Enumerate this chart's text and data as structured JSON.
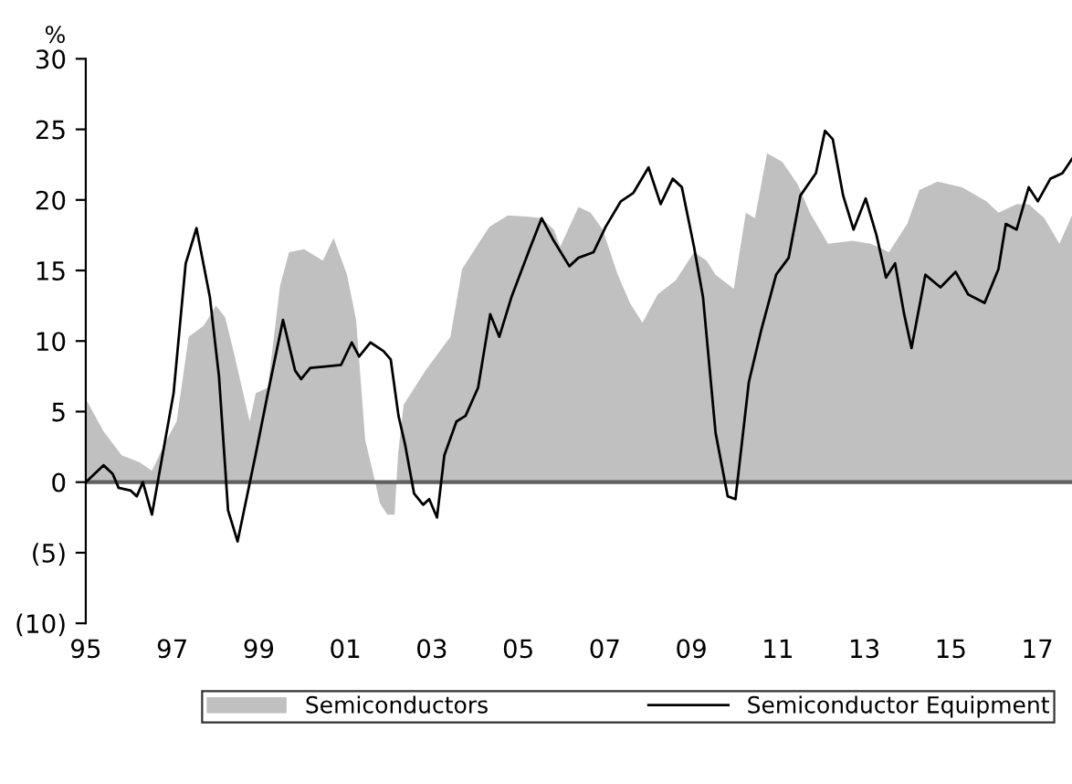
{
  "chart_data": {
    "type": "line",
    "ylabel": "%",
    "x": [
      1995.0,
      1995.41,
      1995.83,
      1996.25,
      1996.53,
      1996.82,
      1997.1,
      1997.38,
      1997.73,
      1998.01,
      1998.22,
      1998.43,
      1998.64,
      1998.79,
      1998.93,
      1999.21,
      1999.49,
      1999.7,
      2000.05,
      2000.48,
      2000.73,
      2001.04,
      2001.25,
      2001.46,
      2001.67,
      2001.8,
      2001.97,
      2002.14,
      2002.22,
      2002.35,
      2002.85,
      2003.43,
      2003.7,
      2004.12,
      2004.33,
      2004.76,
      2005.26,
      2005.54,
      2005.82,
      2005.97,
      2006.39,
      2006.67,
      2006.95,
      2007.3,
      2007.58,
      2007.87,
      2008.22,
      2008.64,
      2009.06,
      2009.35,
      2009.56,
      2009.98,
      2010.26,
      2010.47,
      2010.75,
      2011.1,
      2011.46,
      2011.74,
      2012.16,
      2012.72,
      2013.15,
      2013.57,
      2013.99,
      2014.27,
      2014.69,
      2015.26,
      2015.82,
      2016.1,
      2016.52,
      2016.8,
      2017.16,
      2017.51,
      2017.8
    ],
    "series": [
      {
        "name": "Semiconductors",
        "type": "area",
        "color": "#c0c0c0",
        "values": [
          5.9,
          3.6,
          1.9,
          1.4,
          0.8,
          2.7,
          4.3,
          10.3,
          11.1,
          12.5,
          11.7,
          9.1,
          6.3,
          4.3,
          6.3,
          6.7,
          13.9,
          16.3,
          16.5,
          15.7,
          17.3,
          14.7,
          11.5,
          3.0,
          0.3,
          -1.5,
          -2.3,
          -2.3,
          2.0,
          5.5,
          7.9,
          10.3,
          15.1,
          17.1,
          18.1,
          18.9,
          18.8,
          18.7,
          17.9,
          16.7,
          19.5,
          19.1,
          17.9,
          14.7,
          12.7,
          11.3,
          13.3,
          14.3,
          16.3,
          15.7,
          14.7,
          13.7,
          19.1,
          18.7,
          23.3,
          22.7,
          21.1,
          19.1,
          16.9,
          17.1,
          16.9,
          16.3,
          18.3,
          20.7,
          21.3,
          20.9,
          19.9,
          19.1,
          19.7,
          19.7,
          18.7,
          16.9,
          18.9
        ]
      },
      {
        "name": "Semiconductor Equipment",
        "color": "#000000",
        "x": [
          1995.0,
          1995.41,
          1995.62,
          1995.76,
          1996.04,
          1996.18,
          1996.32,
          1996.53,
          1996.82,
          1997.03,
          1997.31,
          1997.56,
          1997.87,
          1998.08,
          1998.29,
          1998.51,
          1998.93,
          1999.21,
          1999.56,
          1999.84,
          1999.98,
          2000.19,
          2000.54,
          2000.9,
          2001.15,
          2001.32,
          2001.58,
          2001.88,
          2002.05,
          2002.23,
          2002.38,
          2002.59,
          2002.8,
          2002.94,
          2003.12,
          2003.29,
          2003.57,
          2003.78,
          2004.07,
          2004.35,
          2004.56,
          2004.84,
          2005.26,
          2005.54,
          2005.82,
          2006.18,
          2006.39,
          2006.74,
          2007.02,
          2007.37,
          2007.66,
          2008.01,
          2008.29,
          2008.57,
          2008.78,
          2009.06,
          2009.27,
          2009.56,
          2009.84,
          2010.02,
          2010.33,
          2010.61,
          2010.96,
          2011.25,
          2011.52,
          2011.88,
          2012.09,
          2012.27,
          2012.51,
          2012.75,
          2013.03,
          2013.28,
          2013.5,
          2013.71,
          2013.92,
          2014.09,
          2014.41,
          2014.76,
          2015.11,
          2015.4,
          2015.78,
          2016.1,
          2016.27,
          2016.52,
          2016.8,
          2017.01,
          2017.3,
          2017.58,
          2017.8
        ],
        "values": [
          0.0,
          1.2,
          0.6,
          -0.4,
          -0.6,
          -1.0,
          0.0,
          -2.3,
          2.7,
          6.3,
          15.5,
          18.0,
          13.1,
          7.5,
          -2.0,
          -4.2,
          2.0,
          6.3,
          11.5,
          7.9,
          7.3,
          8.1,
          8.2,
          8.3,
          9.9,
          8.9,
          9.9,
          9.3,
          8.7,
          4.7,
          2.7,
          -0.8,
          -1.6,
          -1.2,
          -2.5,
          1.9,
          4.3,
          4.7,
          6.7,
          11.9,
          10.3,
          13.1,
          16.5,
          18.7,
          17.1,
          15.3,
          15.9,
          16.3,
          18.1,
          19.9,
          20.5,
          22.3,
          19.7,
          21.5,
          20.9,
          16.7,
          13.1,
          3.5,
          -1.0,
          -1.2,
          7.1,
          10.7,
          14.7,
          15.9,
          20.3,
          21.9,
          24.9,
          24.3,
          20.3,
          17.9,
          20.1,
          17.5,
          14.5,
          15.5,
          11.9,
          9.5,
          14.7,
          13.8,
          14.9,
          13.3,
          12.7,
          15.1,
          18.3,
          17.9,
          20.9,
          19.9,
          21.5,
          21.9,
          22.9
        ]
      }
    ],
    "xlim": [
      1995,
      2017.8
    ],
    "xticks": [
      {
        "value": 1995,
        "label": "95"
      },
      {
        "value": 1997,
        "label": "97"
      },
      {
        "value": 1999,
        "label": "99"
      },
      {
        "value": 2001,
        "label": "01"
      },
      {
        "value": 2003,
        "label": "03"
      },
      {
        "value": 2005,
        "label": "05"
      },
      {
        "value": 2007,
        "label": "07"
      },
      {
        "value": 2009,
        "label": "09"
      },
      {
        "value": 2011,
        "label": "11"
      },
      {
        "value": 2013,
        "label": "13"
      },
      {
        "value": 2015,
        "label": "15"
      },
      {
        "value": 2017,
        "label": "17"
      }
    ],
    "ylim": [
      -10,
      30
    ],
    "yticks": [
      {
        "value": -10,
        "label": "(10)"
      },
      {
        "value": -5,
        "label": "(5)"
      },
      0,
      5,
      10,
      15,
      20,
      25,
      30
    ],
    "ref_lines": [
      {
        "axis": "y",
        "value": 0,
        "color": "#606060"
      }
    ],
    "grid": false,
    "legend": "bottom"
  }
}
